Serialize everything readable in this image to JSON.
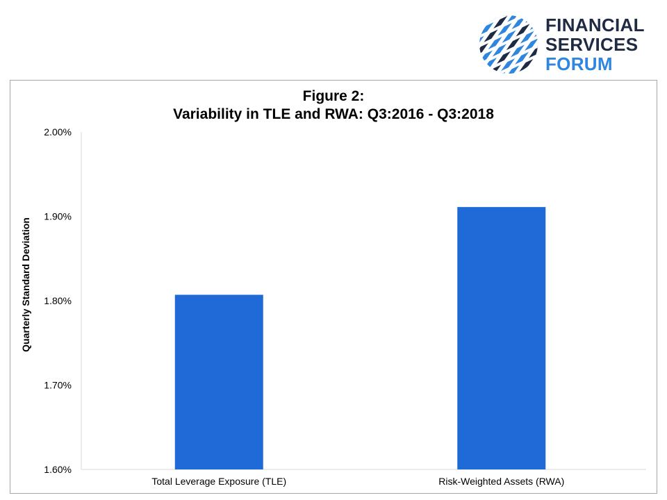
{
  "logo": {
    "line1": "FINANCIAL",
    "line2": "SERVICES",
    "line3": "FORUM",
    "colors": {
      "dark": "#1f2a44",
      "accent": "#2e86de"
    }
  },
  "chart_data": {
    "type": "bar",
    "title_line1": "Figure 2:",
    "title_line2": "Variability in TLE and RWA: Q3:2016  - Q3:2018",
    "categories": [
      "Total Leverage Exposure (TLE)",
      "Risk-Weighted Assets (RWA)"
    ],
    "values": [
      1.807,
      1.911
    ],
    "ylabel": "Quarterly Standard Deviation",
    "xlabel": "",
    "ylim": [
      1.6,
      2.0
    ],
    "yticks": [
      "1.60%",
      "1.70%",
      "1.80%",
      "1.90%",
      "2.00%"
    ],
    "grid": false,
    "bar_color": "#1f6ad6"
  }
}
